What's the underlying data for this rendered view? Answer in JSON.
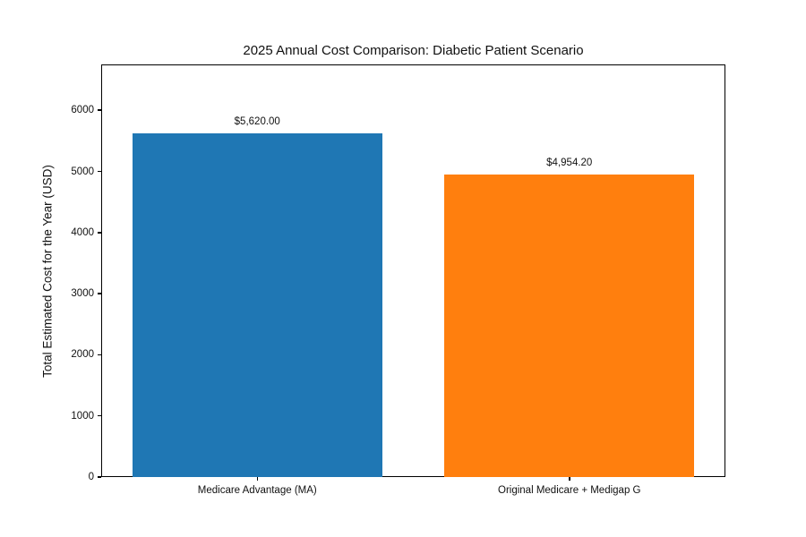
{
  "chart_data": {
    "type": "bar",
    "title": "2025 Annual Cost Comparison: Diabetic Patient Scenario",
    "xlabel": "",
    "ylabel": "Total Estimated Cost for the Year (USD)",
    "categories": [
      "Medicare Advantage (MA)",
      "Original Medicare + Medigap G"
    ],
    "values": [
      5620,
      4954.2
    ],
    "value_labels": [
      "$5,620.00",
      "$4,954.20"
    ],
    "bar_colors": [
      "#1f77b4",
      "#ff7f0e"
    ],
    "yticks": [
      0,
      1000,
      2000,
      3000,
      4000,
      5000,
      6000
    ],
    "ylim": [
      0,
      6750
    ],
    "grid": false,
    "legend_position": "none",
    "background_color": "#ffffff",
    "spine_color": "#000000",
    "text_color": "#111111"
  }
}
